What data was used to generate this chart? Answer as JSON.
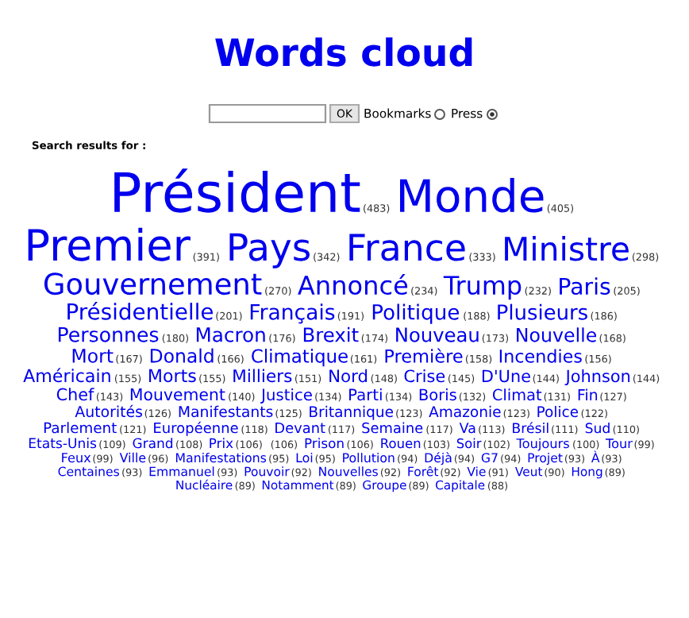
{
  "chart_data": {
    "type": "other",
    "title": "Words cloud",
    "color": "#0000ee",
    "annotations": [
      "OK",
      "Bookmarks",
      "Press",
      "Search results for :"
    ],
    "categories": [
      "Président",
      "Monde",
      "Premier",
      "Pays",
      "France",
      "Ministre",
      "Gouvernement",
      "Annoncé",
      "Trump",
      "Paris",
      "Présidentielle",
      "Français",
      "Politique",
      "Plusieurs",
      "Personnes",
      "Macron",
      "Brexit",
      "Nouveau",
      "Nouvelle",
      "Mort",
      "Donald",
      "Climatique",
      "Première",
      "Incendies",
      "Américain",
      "Morts",
      "Milliers",
      "Nord",
      "Crise",
      "D'Une",
      "Johnson",
      "Chef",
      "Mouvement",
      "Justice",
      "Parti",
      "Boris",
      "Climat",
      "Fin",
      "Autorités",
      "Manifestants",
      "Britannique",
      "Amazonie",
      "Police",
      "Parlement",
      "Européenne",
      "Devant",
      "Semaine",
      "Va",
      "Brésil",
      "Sud",
      "Etats-Unis",
      "Grand",
      "Prix",
      null,
      "Prison",
      "Rouen",
      "Soir",
      "Toujours",
      "Tour",
      "Feux",
      "Ville",
      "Manifestations",
      "Loi",
      "Pollution",
      "Déjà",
      "G7",
      "Projet",
      "À",
      "Centaines",
      "Emmanuel",
      "Pouvoir",
      "Nouvelles",
      "Forêt",
      "Vie",
      "Veut",
      "Hong",
      "Nucléaire",
      "Notamment",
      "Groupe",
      "Capitale"
    ],
    "values": [
      483,
      405,
      391,
      342,
      333,
      298,
      270,
      234,
      232,
      205,
      201,
      191,
      188,
      186,
      180,
      176,
      174,
      173,
      168,
      167,
      166,
      161,
      158,
      156,
      155,
      155,
      151,
      148,
      145,
      144,
      144,
      143,
      140,
      134,
      134,
      132,
      131,
      127,
      126,
      125,
      123,
      123,
      122,
      121,
      118,
      117,
      117,
      113,
      111,
      110,
      109,
      108,
      106,
      106,
      106,
      103,
      102,
      100,
      99,
      99,
      96,
      95,
      95,
      94,
      94,
      94,
      93,
      93,
      93,
      93,
      92,
      92,
      92,
      91,
      90,
      89,
      89,
      89,
      89,
      88
    ],
    "value_labels": [
      "(483)",
      "(405)",
      "(391)",
      "(342)",
      "(333)",
      "(298)",
      "(270)",
      "(234)",
      "(232)",
      "(205)",
      "(201)",
      "(191)",
      "(188)",
      "(186)",
      "(180)",
      "(176)",
      "(174)",
      "(173)",
      "(168)",
      "(167)",
      "(166)",
      "(161)",
      "(158)",
      "(156)",
      "(155)",
      "(155)",
      "(151)",
      "(148)",
      "(145)",
      "(144)",
      "(144)",
      "(143)",
      "(140)",
      "(134)",
      "(134)",
      "(132)",
      "(131)",
      "(127)",
      "(126)",
      "(125)",
      "(123)",
      "(123)",
      "(122)",
      "(121)",
      "(118)",
      "(117)",
      "(117)",
      "(113)",
      "(111)",
      "(110)",
      "(109)",
      "(108)",
      "(106)",
      "(106)",
      "(106)",
      "(103)",
      "(102)",
      "(100)",
      "(99)",
      "(99)",
      "(96)",
      "(95)",
      "(95)",
      "(94)",
      "(94)",
      "(94)",
      "(93)",
      "(93)",
      "(93)",
      "(93)",
      "(92)",
      "(92)",
      "(92)",
      "(91)",
      "(90)",
      "(89)",
      "(89)",
      "(89)",
      "(89)",
      "(88)"
    ]
  }
}
